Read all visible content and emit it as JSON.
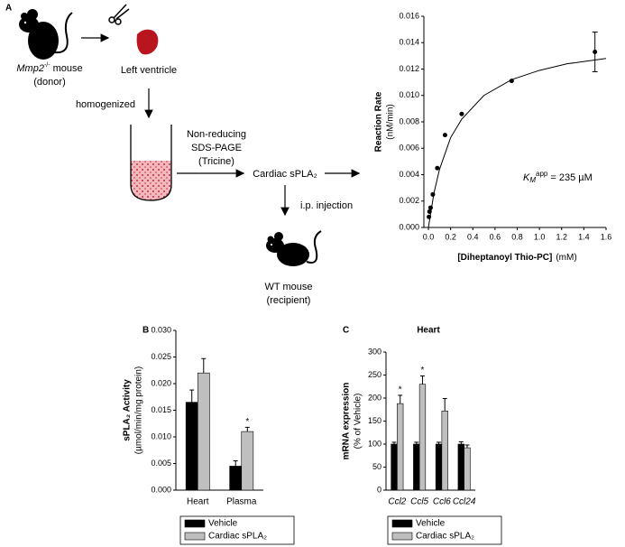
{
  "panel_labels": [
    "A",
    "B",
    "C"
  ],
  "diagram": {
    "donor": {
      "gene": "Mmp2",
      "genotype": "-/-",
      "label": "mouse",
      "role": "(donor)"
    },
    "tissue": "Left ventricle",
    "step1": "homogenized",
    "step2": [
      "Non-reducing",
      "SDS-PAGE",
      "(Tricine)"
    ],
    "product": "Cardiac sPLA₂",
    "step3": "i.p. injection",
    "recipient": {
      "label": "WT mouse",
      "role": "(recipient)"
    }
  },
  "chart_data": [
    {
      "type": "scatter",
      "ylabel": [
        "Reaction Rate",
        "(nM/min)"
      ],
      "xlabel": "[Diheptanoyl Thio-PC]",
      "xunit": "(mM)",
      "color": "#000000",
      "x": [
        0.005,
        0.01,
        0.02,
        0.04,
        0.08,
        0.15,
        0.3,
        0.75,
        1.5
      ],
      "values": [
        0.0008,
        0.0012,
        0.0015,
        0.0025,
        0.0045,
        0.007,
        0.0086,
        0.0111,
        0.0133
      ],
      "errors": [
        null,
        null,
        null,
        null,
        null,
        null,
        null,
        null,
        0.0015
      ],
      "fit": {
        "x": [
          0,
          0.05,
          0.1,
          0.2,
          0.3,
          0.5,
          0.75,
          1,
          1.25,
          1.6
        ],
        "values": [
          0,
          0.0026,
          0.0044,
          0.0068,
          0.0082,
          0.01,
          0.0112,
          0.0119,
          0.0124,
          0.0128
        ]
      },
      "annotation": {
        "text": "K",
        "sub": "M",
        "sup": "app",
        "rest": "= 235 µM"
      },
      "xlim": [
        0,
        1.6
      ],
      "xticks": [
        {
          "value": 0,
          "label": "0.0"
        },
        0.2,
        0.4,
        0.6,
        0.8,
        {
          "value": 1,
          "label": "1.0"
        },
        1.2,
        1.4,
        1.6
      ],
      "ylim": [
        0,
        0.016
      ],
      "yticks": [
        {
          "value": 0,
          "label": "0.000"
        },
        0.002,
        0.004,
        0.006,
        0.008,
        {
          "value": 0.01,
          "label": "0.010"
        },
        0.012,
        0.014,
        0.016
      ]
    },
    {
      "type": "bar",
      "ylabel": [
        "sPLA₂ Activity",
        "(µmol/min/mg protein)"
      ],
      "categories": [
        "Heart",
        "Plasma"
      ],
      "series": [
        {
          "name": "Vehicle",
          "color": "#000000",
          "values": [
            0.0165,
            0.0045
          ],
          "errors": [
            0.0023,
            0.001
          ]
        },
        {
          "name": "Cardiac sPLA₂",
          "color": "#bfbfbf",
          "values": [
            0.022,
            0.011
          ],
          "errors": [
            0.0027,
            0.0008
          ],
          "significance": [
            null,
            "*"
          ]
        }
      ],
      "ylim": [
        0,
        0.03
      ],
      "yticks": [
        {
          "value": 0,
          "label": "0.000"
        },
        0.005,
        {
          "value": 0.01,
          "label": "0.010"
        },
        0.015,
        {
          "value": 0.02,
          "label": "0.020"
        },
        0.025,
        {
          "value": 0.03,
          "label": "0.030"
        }
      ]
    },
    {
      "type": "bar",
      "title": "Heart",
      "ylabel": [
        "mRNA expression",
        "(% of Vehicle)"
      ],
      "categories": [
        "Ccl2",
        "Ccl5",
        "Ccl6",
        "Ccl24"
      ],
      "category_style": "italic",
      "series": [
        {
          "name": "Vehicle",
          "color": "#000000",
          "values": [
            100,
            100,
            100,
            100
          ],
          "errors": [
            4,
            4,
            4,
            5
          ]
        },
        {
          "name": "Cardiac sPLA₂",
          "color": "#bfbfbf",
          "values": [
            188,
            230,
            172,
            92
          ],
          "errors": [
            18,
            18,
            27,
            6
          ],
          "significance": [
            "*",
            "*",
            null,
            null
          ]
        }
      ],
      "ylim": [
        0,
        300
      ],
      "yticks": [
        0,
        50,
        100,
        150,
        200,
        250,
        300
      ]
    }
  ]
}
